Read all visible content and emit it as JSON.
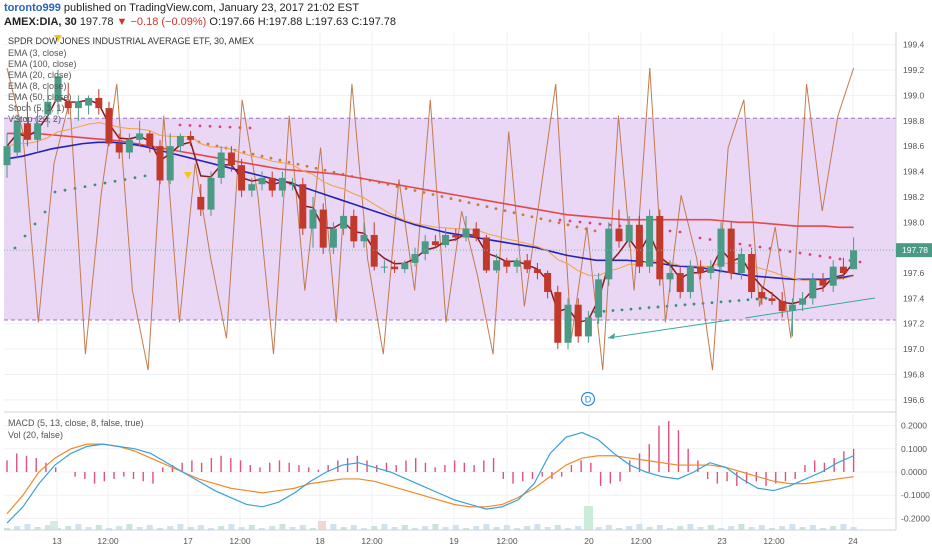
{
  "header": {
    "user": "toronto999",
    "published_text": "published on TradingView.com, January 23, 2017 21:02 EST",
    "symbol": "AMEX:DIA, 30",
    "last": "197.78",
    "change": "−0.18 (−0.09%)",
    "open": "O:197.66",
    "high": "H:197.88",
    "low": "L:197.63",
    "close": "C:197.78"
  },
  "main_title": "SPDR DOW JONES INDUSTRIAL AVERAGE ETF, 30, AMEX",
  "indicators": [
    "EMA (3, close)",
    "EMA (100, close)",
    "EMA (20, close)",
    "EMA (8, close)",
    "EMA (50, close)",
    "Stoch (5, 1, 1)",
    "VStop (20, 2)"
  ],
  "lower_indicators": [
    "MACD (5, 13, close, 8, false, true)",
    "Vol (20, false)"
  ],
  "event_marker": "D",
  "colors": {
    "up": "#4a9a86",
    "down": "#c0392b",
    "zone": "#e6d0f5",
    "ema3": "#8b1a1a",
    "ema100": "#e54848",
    "ema20": "#f2a13f",
    "ema50": "#2323b8",
    "stoch": "#c27b4e",
    "macd": "#3aa0d8",
    "signal": "#f08a2b",
    "hist": "#e0507a",
    "trend": "#3aa8a0"
  },
  "chart_data": [
    {
      "type": "candlestick",
      "y_ticks": [
        196.6,
        196.8,
        197.0,
        197.2,
        197.4,
        197.6,
        197.8,
        198.0,
        198.2,
        198.4,
        198.6,
        198.8,
        199.0,
        199.2,
        199.4
      ],
      "ylim": [
        196.52,
        199.5
      ],
      "last_price_label": "197.78",
      "x_tick_labels": [
        "13",
        "12:00",
        "17",
        "12:00",
        "18",
        "12:00",
        "19",
        "12:00",
        "20",
        "12:00",
        "23",
        "12:00",
        "24"
      ],
      "zone": [
        197.23,
        198.82
      ],
      "ohlc": [
        [
          198.45,
          198.7,
          198.35,
          198.6
        ],
        [
          198.55,
          198.85,
          198.5,
          198.8
        ],
        [
          198.78,
          198.95,
          198.6,
          198.65
        ],
        [
          198.65,
          198.9,
          198.55,
          198.78
        ],
        [
          198.85,
          199.05,
          198.75,
          198.95
        ],
        [
          198.95,
          199.2,
          198.85,
          199.15
        ],
        [
          198.95,
          199.1,
          198.85,
          198.9
        ],
        [
          198.9,
          199.0,
          198.8,
          198.95
        ],
        [
          198.92,
          199.0,
          198.85,
          198.98
        ],
        [
          198.98,
          199.05,
          198.85,
          198.9
        ],
        [
          198.9,
          198.95,
          198.6,
          198.62
        ],
        [
          198.62,
          198.7,
          198.5,
          198.55
        ],
        [
          198.55,
          198.7,
          198.5,
          198.65
        ],
        [
          198.65,
          198.8,
          198.6,
          198.7
        ],
        [
          198.7,
          198.72,
          198.55,
          198.6
        ],
        [
          198.6,
          198.65,
          198.3,
          198.33
        ],
        [
          198.33,
          198.7,
          198.3,
          198.6
        ],
        [
          198.6,
          198.7,
          198.55,
          198.68
        ],
        [
          198.68,
          198.72,
          198.6,
          198.65
        ],
        [
          198.2,
          198.3,
          198.05,
          198.1
        ],
        [
          198.1,
          198.4,
          198.05,
          198.35
        ],
        [
          198.35,
          198.6,
          198.3,
          198.55
        ],
        [
          198.55,
          198.6,
          198.4,
          198.45
        ],
        [
          198.45,
          198.5,
          198.2,
          198.25
        ],
        [
          198.25,
          198.35,
          198.2,
          198.3
        ],
        [
          198.3,
          198.4,
          198.25,
          198.35
        ],
        [
          198.35,
          198.4,
          198.2,
          198.25
        ],
        [
          198.25,
          198.4,
          198.2,
          198.35
        ],
        [
          198.3,
          198.35,
          198.25,
          198.3
        ],
        [
          198.3,
          198.35,
          197.9,
          197.95
        ],
        [
          197.95,
          198.2,
          197.8,
          198.1
        ],
        [
          198.1,
          198.15,
          197.75,
          197.8
        ],
        [
          197.8,
          198.0,
          197.75,
          197.95
        ],
        [
          197.95,
          198.1,
          197.9,
          198.05
        ],
        [
          198.05,
          198.1,
          197.8,
          197.85
        ],
        [
          197.85,
          198.0,
          197.8,
          197.9
        ],
        [
          197.9,
          198.0,
          197.62,
          197.65
        ],
        [
          197.65,
          197.7,
          197.6,
          197.65
        ],
        [
          197.65,
          197.7,
          197.6,
          197.63
        ],
        [
          197.63,
          197.7,
          197.6,
          197.68
        ],
        [
          197.68,
          197.8,
          197.65,
          197.75
        ],
        [
          197.75,
          197.9,
          197.7,
          197.85
        ],
        [
          197.85,
          197.9,
          197.8,
          197.82
        ],
        [
          197.82,
          197.95,
          197.8,
          197.9
        ],
        [
          197.9,
          197.95,
          197.85,
          197.88
        ],
        [
          197.88,
          198.05,
          197.85,
          197.95
        ],
        [
          197.95,
          198.0,
          197.85,
          197.88
        ],
        [
          197.88,
          197.9,
          197.6,
          197.62
        ],
        [
          197.62,
          197.75,
          197.6,
          197.7
        ],
        [
          197.7,
          197.72,
          197.6,
          197.65
        ],
        [
          197.65,
          197.72,
          197.6,
          197.7
        ],
        [
          197.7,
          197.75,
          197.6,
          197.63
        ],
        [
          197.63,
          197.68,
          197.55,
          197.6
        ],
        [
          197.6,
          197.62,
          197.4,
          197.45
        ],
        [
          197.45,
          197.5,
          197.0,
          197.05
        ],
        [
          197.05,
          197.4,
          197.0,
          197.35
        ],
        [
          197.35,
          197.4,
          197.05,
          197.1
        ],
        [
          197.1,
          197.3,
          197.05,
          197.25
        ],
        [
          197.25,
          197.6,
          197.2,
          197.55
        ],
        [
          197.55,
          198.0,
          197.5,
          197.95
        ],
        [
          197.95,
          198.1,
          197.8,
          197.85
        ],
        [
          197.85,
          198.05,
          197.8,
          197.98
        ],
        [
          197.98,
          198.05,
          197.6,
          197.65
        ],
        [
          197.65,
          198.1,
          197.6,
          198.05
        ],
        [
          198.05,
          198.1,
          197.5,
          197.55
        ],
        [
          197.55,
          197.7,
          197.45,
          197.6
        ],
        [
          197.6,
          197.65,
          197.4,
          197.45
        ],
        [
          197.45,
          197.7,
          197.4,
          197.65
        ],
        [
          197.65,
          197.7,
          197.55,
          197.6
        ],
        [
          197.6,
          197.7,
          197.55,
          197.65
        ],
        [
          197.65,
          198.0,
          197.6,
          197.95
        ],
        [
          197.95,
          198.0,
          197.55,
          197.6
        ],
        [
          197.6,
          197.8,
          197.55,
          197.75
        ],
        [
          197.75,
          197.8,
          197.4,
          197.45
        ],
        [
          197.45,
          197.5,
          197.35,
          197.4
        ],
        [
          197.4,
          197.45,
          197.35,
          197.38
        ],
        [
          197.38,
          197.45,
          197.25,
          197.3
        ],
        [
          197.3,
          197.4,
          197.1,
          197.35
        ],
        [
          197.35,
          197.45,
          197.3,
          197.4
        ],
        [
          197.4,
          197.6,
          197.35,
          197.55
        ],
        [
          197.55,
          197.6,
          197.45,
          197.5
        ],
        [
          197.5,
          197.7,
          197.45,
          197.65
        ],
        [
          197.65,
          197.72,
          197.55,
          197.6
        ],
        [
          197.63,
          197.88,
          197.63,
          197.78
        ]
      ],
      "ema100": [
        198.7,
        198.7,
        198.7,
        198.69,
        198.68,
        198.67,
        198.66,
        198.65,
        198.64,
        198.62,
        198.6,
        198.58,
        198.56,
        198.54,
        198.52,
        198.5,
        198.48,
        198.46,
        198.44,
        198.42,
        198.41,
        198.4,
        198.39,
        198.38,
        198.36,
        198.34,
        198.32,
        198.3,
        198.28,
        198.26,
        198.24,
        198.22,
        198.2,
        198.18,
        198.16,
        198.14,
        198.12,
        198.1,
        198.08,
        198.06,
        198.05,
        198.04,
        198.03,
        198.02,
        198.02,
        198.02,
        198.02,
        198.02,
        198.02,
        198.02,
        198.01,
        198.0,
        198.0,
        197.99,
        197.98,
        197.97,
        197.97,
        197.97,
        197.96,
        197.96
      ],
      "ema50": [
        198.5,
        198.52,
        198.55,
        198.58,
        198.6,
        198.62,
        198.63,
        198.63,
        198.62,
        198.6,
        198.57,
        198.54,
        198.51,
        198.48,
        198.45,
        198.42,
        198.39,
        198.36,
        198.33,
        198.3,
        198.26,
        198.22,
        198.18,
        198.14,
        198.1,
        198.06,
        198.02,
        197.98,
        197.95,
        197.92,
        197.9,
        197.88,
        197.86,
        197.84,
        197.82,
        197.8,
        197.77,
        197.74,
        197.72,
        197.7,
        197.7,
        197.7,
        197.69,
        197.68,
        197.66,
        197.65,
        197.64,
        197.62,
        197.6,
        197.58,
        197.57,
        197.56,
        197.55,
        197.55,
        197.55,
        197.56,
        197.58
      ],
      "stoch_pct": [
        100,
        80,
        20,
        70,
        90,
        10,
        60,
        95,
        30,
        5,
        85,
        20,
        70,
        40,
        15,
        90,
        60,
        10,
        85,
        30,
        75,
        20,
        95,
        40,
        10,
        65,
        30,
        90,
        20,
        55,
        35,
        10,
        80,
        25,
        60,
        95,
        15,
        50,
        5,
        85,
        30,
        100,
        20,
        60,
        40,
        5,
        75,
        90,
        25,
        50,
        15,
        95,
        55,
        85,
        100
      ]
    },
    {
      "type": "macd_volume",
      "y_ticks": [
        -0.2,
        -0.1,
        0.0,
        0.1,
        0.2
      ],
      "ylim": [
        -0.25,
        0.25
      ],
      "macd": [
        -0.22,
        -0.15,
        -0.05,
        0.03,
        0.08,
        0.11,
        0.12,
        0.11,
        0.1,
        0.08,
        0.04,
        0.0,
        -0.04,
        -0.08,
        -0.11,
        -0.14,
        -0.15,
        -0.13,
        -0.09,
        -0.04,
        0.0,
        0.03,
        0.04,
        0.02,
        0.0,
        -0.03,
        -0.06,
        -0.09,
        -0.12,
        -0.14,
        -0.16,
        -0.15,
        -0.12,
        -0.05,
        0.08,
        0.15,
        0.17,
        0.14,
        0.08,
        0.03,
        0.0,
        -0.02,
        -0.03,
        0.0,
        0.04,
        0.02,
        -0.03,
        -0.07,
        -0.08,
        -0.06,
        -0.03,
        0.0,
        0.04,
        0.07
      ],
      "signal": [
        -0.18,
        -0.1,
        0.0,
        0.06,
        0.1,
        0.12,
        0.12,
        0.11,
        0.09,
        0.06,
        0.03,
        0.0,
        -0.03,
        -0.05,
        -0.07,
        -0.08,
        -0.09,
        -0.08,
        -0.07,
        -0.05,
        -0.04,
        -0.03,
        -0.03,
        -0.04,
        -0.06,
        -0.08,
        -0.1,
        -0.12,
        -0.14,
        -0.15,
        -0.15,
        -0.14,
        -0.11,
        -0.07,
        -0.02,
        0.03,
        0.06,
        0.07,
        0.07,
        0.06,
        0.05,
        0.04,
        0.03,
        0.03,
        0.03,
        0.02,
        0.0,
        -0.02,
        -0.04,
        -0.05,
        -0.05,
        -0.04,
        -0.03,
        -0.02
      ],
      "hist": [
        0.05,
        0.08,
        0.07,
        0.06,
        0.04,
        0.02,
        0.0,
        -0.02,
        -0.03,
        -0.05,
        -0.04,
        -0.03,
        -0.02,
        -0.03,
        -0.04,
        -0.05,
        0.02,
        0.03,
        0.04,
        0.05,
        0.04,
        0.06,
        0.07,
        0.06,
        0.05,
        0.03,
        0.02,
        0.04,
        0.05,
        0.04,
        0.03,
        0.02,
        0.01,
        0.03,
        0.05,
        0.06,
        0.07,
        0.05,
        0.03,
        0.04,
        0.03,
        0.05,
        0.06,
        0.04,
        0.02,
        0.03,
        0.05,
        0.04,
        0.03,
        0.05,
        0.06,
        -0.03,
        -0.05,
        -0.04,
        -0.03,
        -0.02,
        -0.03,
        -0.02,
        0.03,
        0.05,
        0.04,
        -0.06,
        -0.05,
        -0.04,
        0.05,
        0.08,
        0.12,
        0.2,
        0.22,
        0.18,
        0.1,
        0.05,
        -0.03,
        -0.05,
        -0.04,
        -0.06,
        -0.05,
        -0.04,
        -0.06,
        -0.05,
        -0.04,
        -0.03,
        0.03,
        0.05,
        0.04,
        0.06,
        0.09,
        0.1
      ]
    }
  ]
}
